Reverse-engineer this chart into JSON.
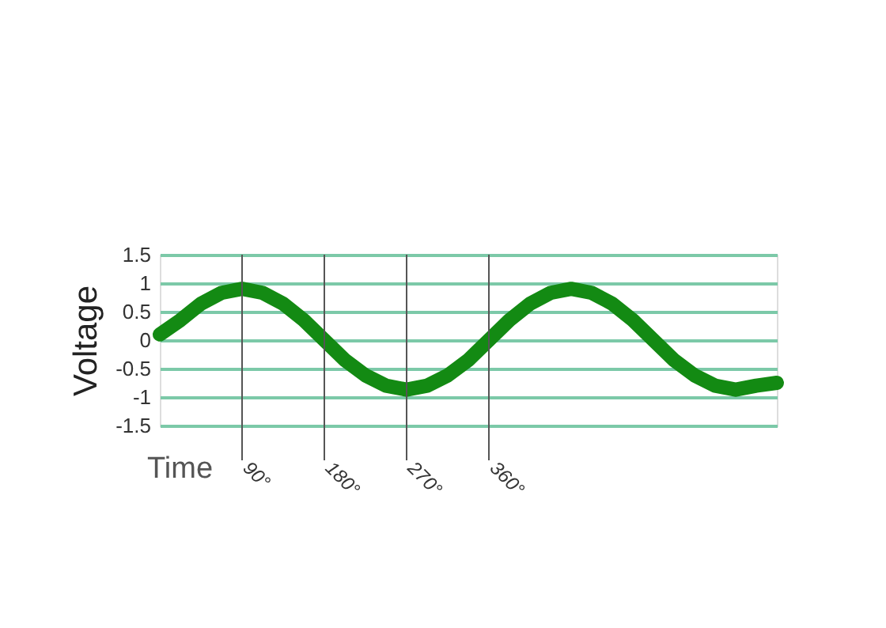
{
  "chart_data": {
    "type": "line",
    "ylabel": "Voltage",
    "x": [
      0,
      22.5,
      45,
      67.5,
      90,
      112.5,
      135,
      157.5,
      180,
      202.5,
      225,
      247.5,
      270,
      292.5,
      315,
      337.5,
      360,
      382.5,
      405,
      427.5,
      450,
      472.5,
      495,
      517.5,
      540,
      562.5,
      585,
      607.5,
      630,
      652.5,
      675
    ],
    "series": [
      {
        "color": "#138a13",
        "values": [
          0.1,
          0.35,
          0.64,
          0.83,
          0.9,
          0.83,
          0.64,
          0.35,
          0,
          -0.35,
          -0.62,
          -0.8,
          -0.87,
          -0.8,
          -0.62,
          -0.35,
          0,
          0.35,
          0.64,
          0.83,
          0.9,
          0.83,
          0.64,
          0.35,
          0,
          -0.35,
          -0.62,
          -0.8,
          -0.87,
          -0.8,
          -0.75
        ]
      }
    ],
    "xlim": [
      0,
      675
    ],
    "ylim": [
      -1.5,
      1.5
    ],
    "yticks": [
      -1.5,
      -1,
      -0.5,
      0,
      0.5,
      1,
      1.5
    ],
    "grid": "y",
    "tick_labels": "y",
    "ref_lines": [
      {
        "axis": "x",
        "value": 90,
        "label": "90°"
      },
      {
        "axis": "x",
        "value": 180,
        "label": "180°"
      },
      {
        "axis": "x",
        "value": 270,
        "label": "270°"
      },
      {
        "axis": "x",
        "value": 360,
        "label": "360°"
      }
    ],
    "annotations": [
      "Time"
    ]
  }
}
